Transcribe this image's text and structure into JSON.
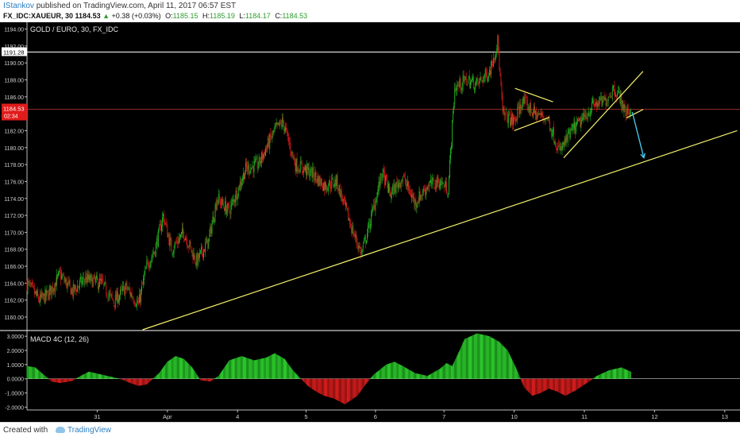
{
  "header": {
    "author": "IStankov",
    "published_text": "published on TradingView.com, April 11, 2017 06:57 EST",
    "symbol": "FX_IDC:XAUEUR, 30",
    "last": "1184.53",
    "change": "+0.38 (+0.03%)",
    "o_label": "O:",
    "o_value": "1185.15",
    "h_label": "H:",
    "h_value": "1185.19",
    "l_label": "L:",
    "l_value": "1184.17",
    "c_label": "C:",
    "c_value": "1184.53"
  },
  "footer": {
    "created_with": "Created with",
    "brand": "TradingView"
  },
  "colors": {
    "bull": "#22b622",
    "bear": "#d91b1b",
    "trendline": "#f3f06a",
    "arrow": "#42c6e8",
    "price_marker": "#e01b1b",
    "background": "#000000"
  },
  "chart_data": [
    {
      "type": "candlestick",
      "title": "GOLD / EURO, 30, FX_IDC",
      "ylim": [
        1158.5,
        1194.8
      ],
      "y_ticks": [
        "1194.00",
        "1192.00",
        "1190.00",
        "1188.00",
        "1186.00",
        "1184.00",
        "1182.00",
        "1180.00",
        "1178.00",
        "1176.00",
        "1174.00",
        "1172.00",
        "1170.00",
        "1168.00",
        "1166.00",
        "1164.00",
        "1162.00",
        "1160.00"
      ],
      "y_tick_values": [
        1194,
        1192,
        1190,
        1188,
        1186,
        1184,
        1182,
        1180,
        1178,
        1176,
        1174,
        1172,
        1170,
        1168,
        1166,
        1164,
        1162,
        1160
      ],
      "x_ticks": [
        "31",
        "Apr",
        "4",
        "5",
        "6",
        "7",
        "10",
        "11",
        "12",
        "13"
      ],
      "x_tick_index": [
        85,
        170,
        255,
        338,
        422,
        505,
        590,
        675,
        760,
        845
      ],
      "current_price": "1184.53",
      "current_price_value": 1184.53,
      "countdown_label": "02:34",
      "resistance_price": "1191.28",
      "resistance_value": 1191.28,
      "path_points": [
        [
          0,
          1164
        ],
        [
          15,
          1162
        ],
        [
          25,
          1162.6
        ],
        [
          40,
          1165
        ],
        [
          55,
          1163
        ],
        [
          70,
          1164.5
        ],
        [
          90,
          1164
        ],
        [
          105,
          1161.8
        ],
        [
          120,
          1163.5
        ],
        [
          135,
          1161.5
        ],
        [
          145,
          1166
        ],
        [
          155,
          1168
        ],
        [
          165,
          1172
        ],
        [
          175,
          1168
        ],
        [
          190,
          1170
        ],
        [
          205,
          1166.5
        ],
        [
          220,
          1169
        ],
        [
          230,
          1174
        ],
        [
          245,
          1172.5
        ],
        [
          265,
          1177.5
        ],
        [
          280,
          1178
        ],
        [
          300,
          1182
        ],
        [
          310,
          1183
        ],
        [
          325,
          1178
        ],
        [
          345,
          1177
        ],
        [
          360,
          1175.5
        ],
        [
          375,
          1176
        ],
        [
          385,
          1173
        ],
        [
          395,
          1170
        ],
        [
          405,
          1167.5
        ],
        [
          415,
          1171
        ],
        [
          430,
          1177
        ],
        [
          440,
          1174.5
        ],
        [
          455,
          1176.5
        ],
        [
          470,
          1173.5
        ],
        [
          485,
          1175.5
        ],
        [
          500,
          1176
        ],
        [
          510,
          1175
        ],
        [
          518,
          1187
        ],
        [
          532,
          1188
        ],
        [
          545,
          1187.5
        ],
        [
          560,
          1189
        ],
        [
          570,
          1192.5
        ],
        [
          576,
          1184
        ],
        [
          590,
          1183
        ],
        [
          600,
          1185.5
        ],
        [
          615,
          1184
        ],
        [
          630,
          1183.5
        ],
        [
          645,
          1179.5
        ],
        [
          660,
          1182
        ],
        [
          675,
          1183.5
        ],
        [
          685,
          1185
        ],
        [
          700,
          1185.5
        ],
        [
          710,
          1187
        ],
        [
          718,
          1186
        ],
        [
          725,
          1184
        ],
        [
          731,
          1184.5
        ]
      ],
      "trendlines": [
        {
          "points": [
            [
              140,
              1158.5
            ],
            [
              400,
              1167
            ]
          ],
          "role": "support"
        },
        {
          "points": [
            [
              400,
              1167
            ],
            [
              860,
              1182
            ]
          ],
          "role": "support"
        },
        {
          "points": [
            [
              591,
              1187
            ],
            [
              637,
              1185.4
            ]
          ],
          "role": "triangle-upper"
        },
        {
          "points": [
            [
              590,
              1182
            ],
            [
              633,
              1183.6
            ]
          ],
          "role": "triangle-lower"
        },
        {
          "points": [
            [
              650,
              1178.8
            ],
            [
              746,
              1189
            ]
          ],
          "role": "wedge-lower"
        },
        {
          "points": [
            [
              726,
              1183.5
            ],
            [
              746,
              1184.5
            ]
          ],
          "role": "flag"
        }
      ],
      "arrow": {
        "from": [
          733,
          1184.2
        ],
        "to": [
          747,
          1178.8
        ]
      }
    },
    {
      "type": "histogram",
      "title": "MACD 4C (12, 26)",
      "ylim": [
        -2.2,
        3.4
      ],
      "y_ticks": [
        "3.0000",
        "2.0000",
        "1.0000",
        "0.0000",
        "-1.0000",
        "-2.0000"
      ],
      "y_tick_values": [
        3,
        2,
        1,
        0,
        -1,
        -2
      ],
      "x": [
        0,
        10,
        20,
        30,
        40,
        55,
        65,
        75,
        90,
        105,
        115,
        125,
        135,
        145,
        160,
        170,
        180,
        190,
        200,
        210,
        222,
        232,
        245,
        260,
        275,
        290,
        300,
        312,
        322,
        330,
        340,
        350,
        360,
        372,
        385,
        400,
        410,
        420,
        435,
        445,
        455,
        470,
        485,
        500,
        508,
        515,
        520,
        530,
        545,
        560,
        572,
        582,
        592,
        602,
        612,
        622,
        632,
        642,
        652,
        665,
        678,
        690,
        705,
        720,
        731
      ],
      "values": [
        0.9,
        0.8,
        0.3,
        -0.2,
        -0.3,
        -0.15,
        0.2,
        0.5,
        0.3,
        0.1,
        -0.05,
        -0.3,
        -0.5,
        -0.4,
        0.4,
        1.2,
        1.6,
        1.4,
        0.8,
        -0.1,
        -0.2,
        0.2,
        1.3,
        1.6,
        1.3,
        1.5,
        1.8,
        1.4,
        0.6,
        0.1,
        -0.5,
        -0.9,
        -1.2,
        -1.4,
        -1.8,
        -1.2,
        -0.4,
        0.3,
        1.0,
        1.2,
        0.9,
        0.4,
        0.2,
        0.7,
        1.1,
        0.9,
        1.5,
        2.8,
        3.2,
        3.0,
        2.6,
        2.0,
        0.8,
        -0.6,
        -1.2,
        -1.0,
        -0.7,
        -0.9,
        -1.2,
        -0.8,
        -0.3,
        0.2,
        0.6,
        0.8,
        0.5
      ]
    }
  ]
}
